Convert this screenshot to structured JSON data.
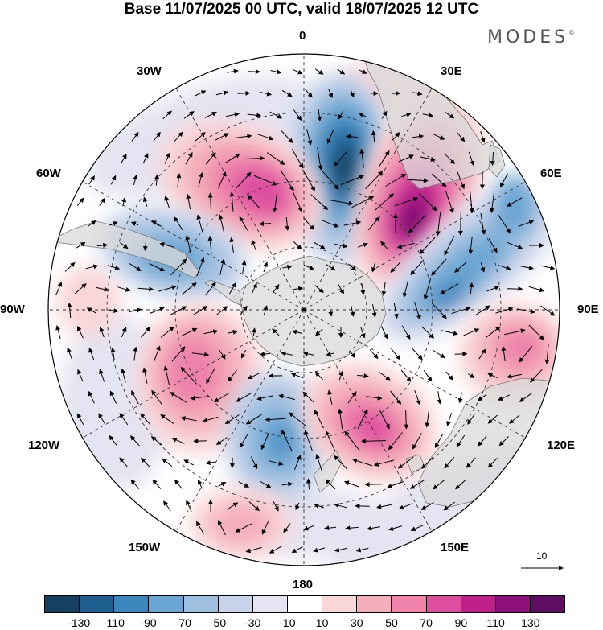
{
  "title": "Base 11/07/2025 00 UTC, valid 18/07/2025 12 UTC",
  "logo_text": "MODES",
  "logo_mark": "©",
  "longitude_labels": {
    "lon_0": "0",
    "lon_30e": "30E",
    "lon_60e": "60E",
    "lon_90e": "90E",
    "lon_120e": "120E",
    "lon_150e": "150E",
    "lon_180": "180",
    "lon_150w": "150W",
    "lon_120w": "120W",
    "lon_90w": "90W",
    "lon_60w": "60W",
    "lon_30w": "30W"
  },
  "reference_vector": {
    "label": "10"
  },
  "colorbar": {
    "colors": [
      "#15405f",
      "#1f5f8f",
      "#3a86bd",
      "#6aa6d3",
      "#9dbfe0",
      "#c7d3ea",
      "#e4e4f2",
      "#ffffff",
      "#f9d6d8",
      "#f4aeb9",
      "#ee82ab",
      "#de4ea0",
      "#bf1f8b",
      "#8c0f7a",
      "#5e0d63"
    ],
    "tick_labels": [
      "-130",
      "-110",
      "-90",
      "-70",
      "-50",
      "-30",
      "-10",
      "10",
      "30",
      "50",
      "70",
      "90",
      "110",
      "130"
    ]
  }
}
